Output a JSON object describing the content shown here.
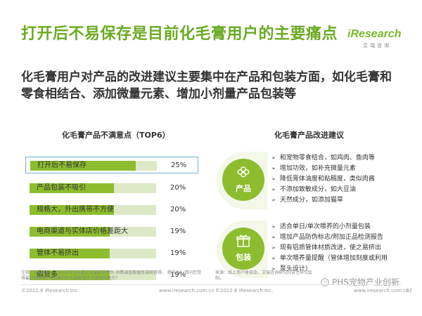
{
  "header": {
    "title": "打开后不易保存是目前化毛膏用户的主要痛点",
    "subtitle": "化毛膏用户对产品的改进建议主要集中在产品和包装方面，如化毛膏和零食相结合、添加微量元素、增加小剂量产品包装等"
  },
  "logo": {
    "main": "iResearch",
    "sub": "艾瑞咨询"
  },
  "left_section": {
    "title": "化毛膏产品不满意点（TOP6）"
  },
  "right_section": {
    "title": "化毛膏产品改进建议"
  },
  "chart_data": {
    "type": "bar",
    "orientation": "horizontal",
    "categories": [
      "打开后不易保存",
      "产品包装不吸引",
      "规格大，外出携带不方便",
      "电商渠道与实体店价格差距大",
      "管体不易挤出",
      "假货多"
    ],
    "values": [
      25,
      20,
      20,
      19,
      19,
      19
    ],
    "value_labels": [
      "25%",
      "20%",
      "20%",
      "19%",
      "19%",
      "19%"
    ],
    "title": "化毛膏产品不满意点（TOP6）",
    "unit": "%",
    "xlim": [
      0,
      30
    ],
    "highlight_index": 0,
    "bar_color": "#8dbd2e",
    "track_color": "#dde9c6",
    "grid": false
  },
  "cards": [
    {
      "label": "产品",
      "icon": "flower-icon",
      "items": [
        "和宠物零食结合，如鸡肉、鱼肉等",
        "增加功效，如补充微量元素",
        "降低膏体油度和粘稠度，类似肉酱",
        "不添加致敏成分，如大豆油",
        "天然成分，如添加猫草"
      ]
    },
    {
      "label": "包装",
      "icon": "gift-icon",
      "items": [
        "适合单日/单次喂养的小剂量包装",
        "增加产品防伪标志/附加正品检测报告",
        "现有铝质管体材质改进，使之易挤出",
        "单次喂养量提醒（管体增加刻度或利用",
        "泵头设计）"
      ]
    }
  ],
  "notes": {
    "left": "注释：N=444； 于2022年5月通过艾瑞智研平台-消费调查数据库调研获得。 题干为：请问您觉得最近购买的XX品牌的化毛膏哪里还不满意的地方？",
    "right": "来源：线上用户座谈会，艾瑞咨询研究院自主研究绘制。"
  },
  "footer": {
    "left_copyright": "©2022.8 iResearch Inc.",
    "left_url": "www.iresearch.com.cn",
    "right_copyright": "©2022.8 iResearch Inc.",
    "right_url": "www.iresearch.com.cn",
    "page": "22"
  },
  "watermark": {
    "text": "PHS宠物产业创新"
  },
  "colors": {
    "accent": "#7ab82a",
    "bar": "#8dbd2e",
    "highlight_border": "#6fb3d6"
  }
}
